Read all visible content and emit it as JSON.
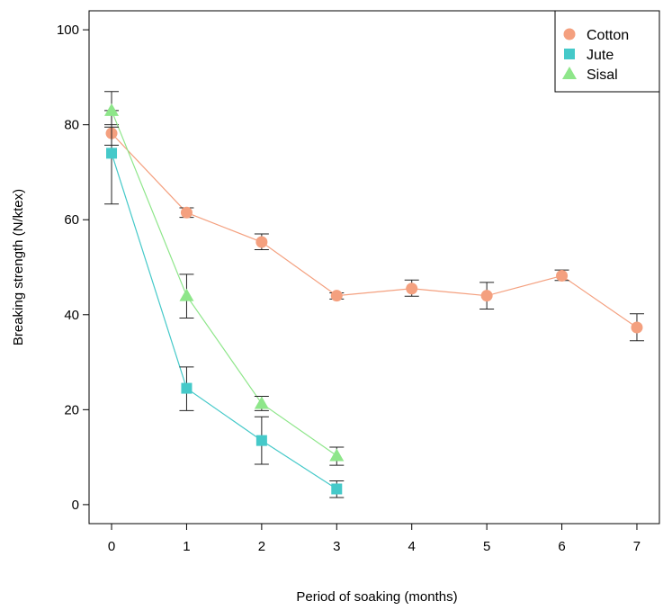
{
  "chart_data": {
    "type": "line",
    "title": "",
    "xlabel": "Period of soaking (months)",
    "ylabel": "Breaking strength (N/ktex)",
    "xlim": [
      -0.3,
      7.3
    ],
    "ylim": [
      -4,
      104
    ],
    "x_ticks": [
      0,
      1,
      2,
      3,
      4,
      5,
      6,
      7
    ],
    "y_ticks": [
      0,
      20,
      40,
      60,
      80,
      100
    ],
    "grid": false,
    "legend_position": "top-right",
    "series": [
      {
        "name": "Cotton",
        "marker": "circle",
        "color": "#F4A07F",
        "x": [
          0,
          1,
          2,
          3,
          4,
          5,
          6,
          7
        ],
        "y": [
          78.2,
          61.5,
          55.3,
          44.0,
          45.5,
          44.0,
          48.2,
          37.3
        ],
        "err_low": [
          75.7,
          60.5,
          53.7,
          43.3,
          43.9,
          41.2,
          47.2,
          34.5
        ],
        "err_high": [
          80.0,
          62.5,
          57.0,
          44.6,
          47.3,
          46.8,
          49.4,
          40.2
        ]
      },
      {
        "name": "Jute",
        "marker": "square",
        "color": "#45C9C9",
        "x": [
          0,
          1,
          2,
          3
        ],
        "y": [
          74.0,
          24.5,
          13.5,
          3.3
        ],
        "err_low": [
          63.3,
          19.8,
          8.5,
          1.5
        ],
        "err_high": [
          83.0,
          29.0,
          18.5,
          5.0
        ]
      },
      {
        "name": "Sisal",
        "marker": "triangle",
        "color": "#8EE68A",
        "x": [
          0,
          1,
          2,
          3
        ],
        "y": [
          83.0,
          44.0,
          21.3,
          10.3
        ],
        "err_low": [
          79.5,
          39.3,
          19.8,
          8.3
        ],
        "err_high": [
          87.0,
          48.5,
          22.8,
          12.1
        ]
      }
    ]
  }
}
